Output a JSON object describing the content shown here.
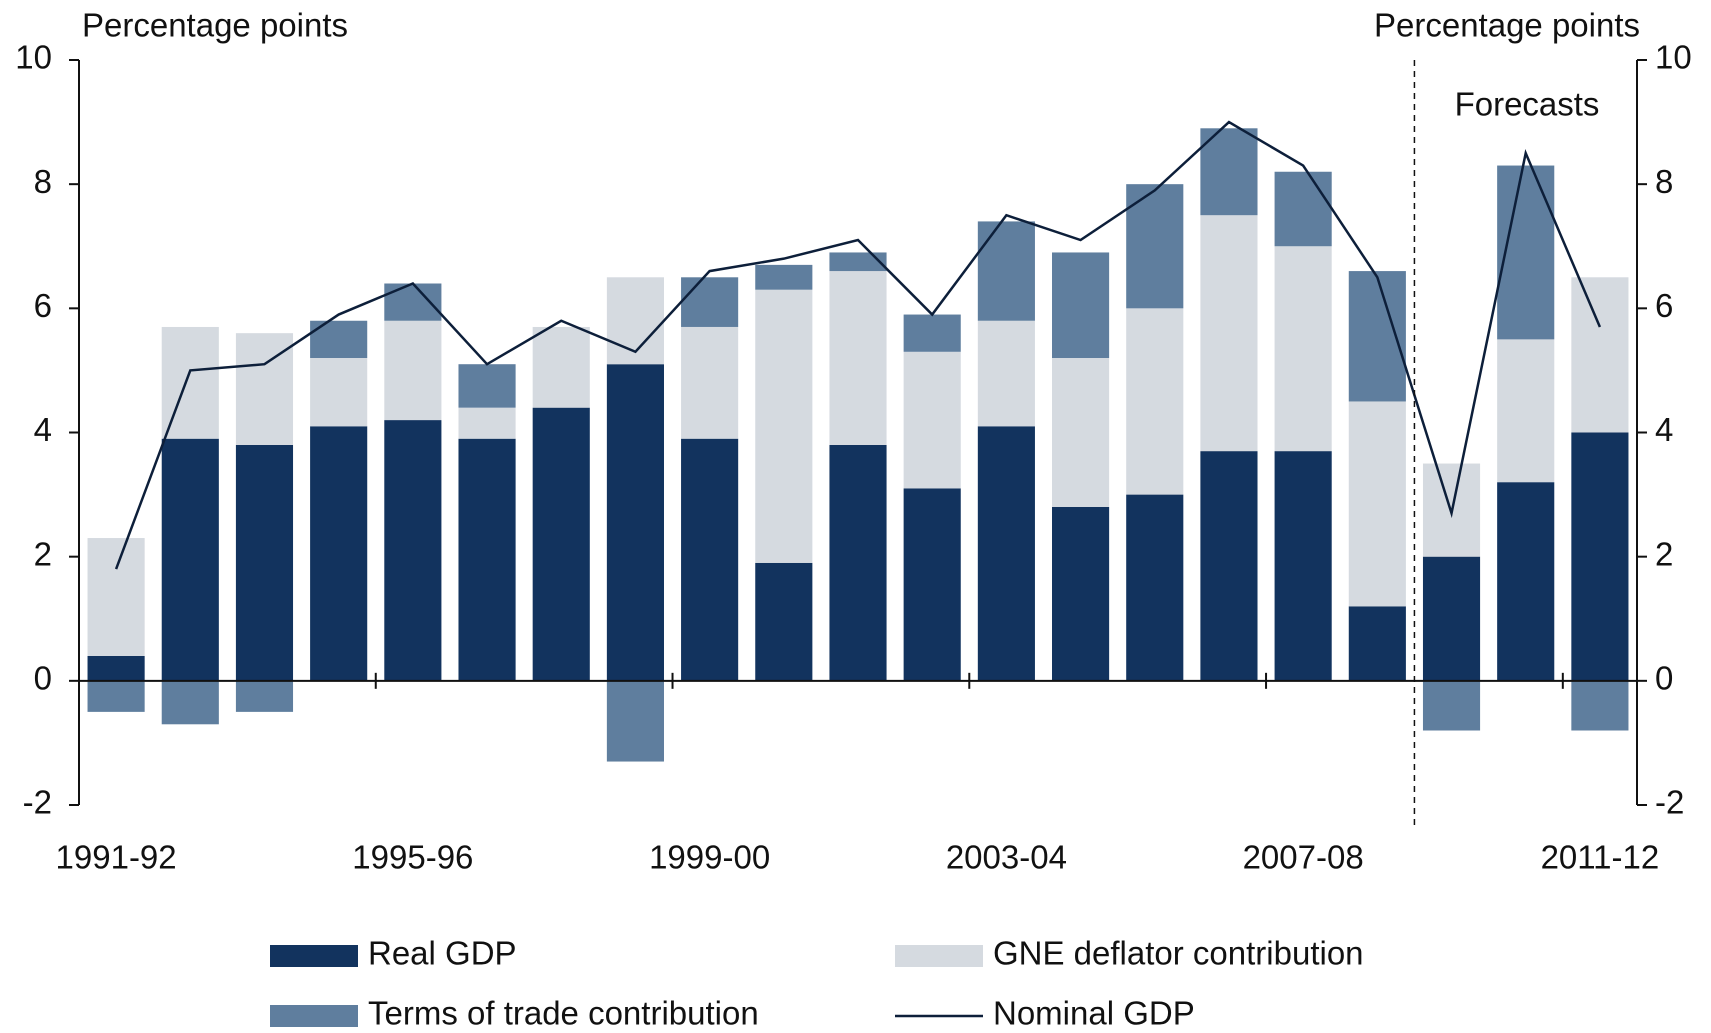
{
  "chart_data": {
    "type": "bar",
    "stacked": true,
    "ylabel": "Percentage points",
    "y2label": "Percentage points",
    "annotations": [
      {
        "text": "Forecasts"
      }
    ],
    "categories": [
      "1991-92",
      null,
      null,
      null,
      "1995-96",
      null,
      null,
      null,
      "1999-00",
      null,
      null,
      null,
      "2003-04",
      null,
      null,
      null,
      "2007-08",
      null,
      null,
      null,
      "2011-12"
    ],
    "series": [
      {
        "name": "Real GDP",
        "type": "bar",
        "color": "#12335e",
        "values": [
          0.4,
          3.9,
          3.8,
          4.1,
          4.2,
          3.9,
          4.4,
          5.1,
          3.9,
          1.9,
          3.8,
          3.1,
          4.1,
          2.8,
          3.0,
          3.7,
          3.7,
          1.2,
          2.0,
          3.2,
          4.0
        ]
      },
      {
        "name": "GNE deflator contribution",
        "type": "bar",
        "color": "#d5dae0",
        "values": [
          1.9,
          1.8,
          1.8,
          1.1,
          1.6,
          0.5,
          1.3,
          1.4,
          1.8,
          4.4,
          2.8,
          2.2,
          1.7,
          2.4,
          3.0,
          3.8,
          3.3,
          3.3,
          1.5,
          2.3,
          2.5
        ]
      },
      {
        "name": "Terms of trade contribution",
        "type": "bar",
        "color": "#5f7e9e",
        "values": [
          -0.5,
          -0.7,
          -0.5,
          0.6,
          0.6,
          0.7,
          0,
          -1.3,
          0.8,
          0.4,
          0.3,
          0.6,
          1.6,
          1.7,
          2.0,
          1.4,
          1.2,
          2.1,
          -0.8,
          2.8,
          -0.8
        ]
      },
      {
        "name": "Nominal GDP",
        "type": "line",
        "color": "#0d1f3a",
        "values": [
          1.8,
          5.0,
          5.1,
          5.9,
          6.4,
          5.1,
          5.8,
          5.3,
          6.6,
          6.8,
          7.1,
          5.9,
          7.5,
          7.1,
          7.9,
          9.0,
          8.3,
          6.5,
          2.7,
          8.5,
          5.7
        ]
      }
    ],
    "ylim": [
      -2,
      10
    ],
    "yticks": [
      -2,
      0,
      2,
      4,
      6,
      8,
      10
    ],
    "y2lim": [
      -2,
      10
    ],
    "y2ticks": [
      -2,
      0,
      2,
      4,
      6,
      8,
      10
    ]
  }
}
